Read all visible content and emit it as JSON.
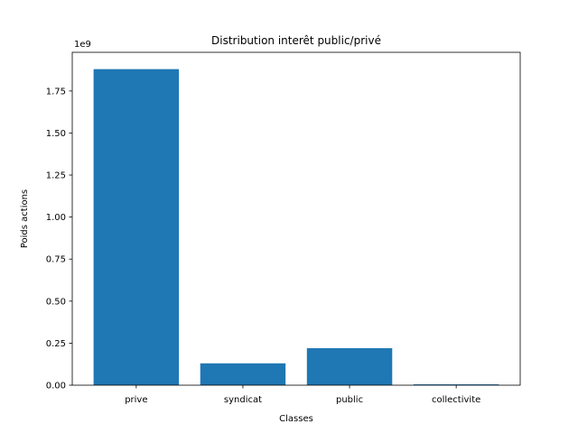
{
  "chart_data": {
    "type": "bar",
    "title": "Distribution interêt public/privé",
    "xlabel": "Classes",
    "ylabel": "Poids actions",
    "offset_label": "1e9",
    "categories": [
      "prive",
      "syndicat",
      "public",
      "collectivite"
    ],
    "values": [
      1880000000,
      130000000,
      220000000,
      5000000
    ],
    "ylim": [
      0,
      1980000000
    ],
    "yticks": [
      0,
      250000000,
      500000000,
      750000000,
      1000000000,
      1250000000,
      1500000000,
      1750000000
    ],
    "ytick_labels": [
      "0.00",
      "0.25",
      "0.50",
      "0.75",
      "1.00",
      "1.25",
      "1.50",
      "1.75"
    ],
    "bar_color": "#1f77b4",
    "grid": false,
    "legend": "none"
  }
}
